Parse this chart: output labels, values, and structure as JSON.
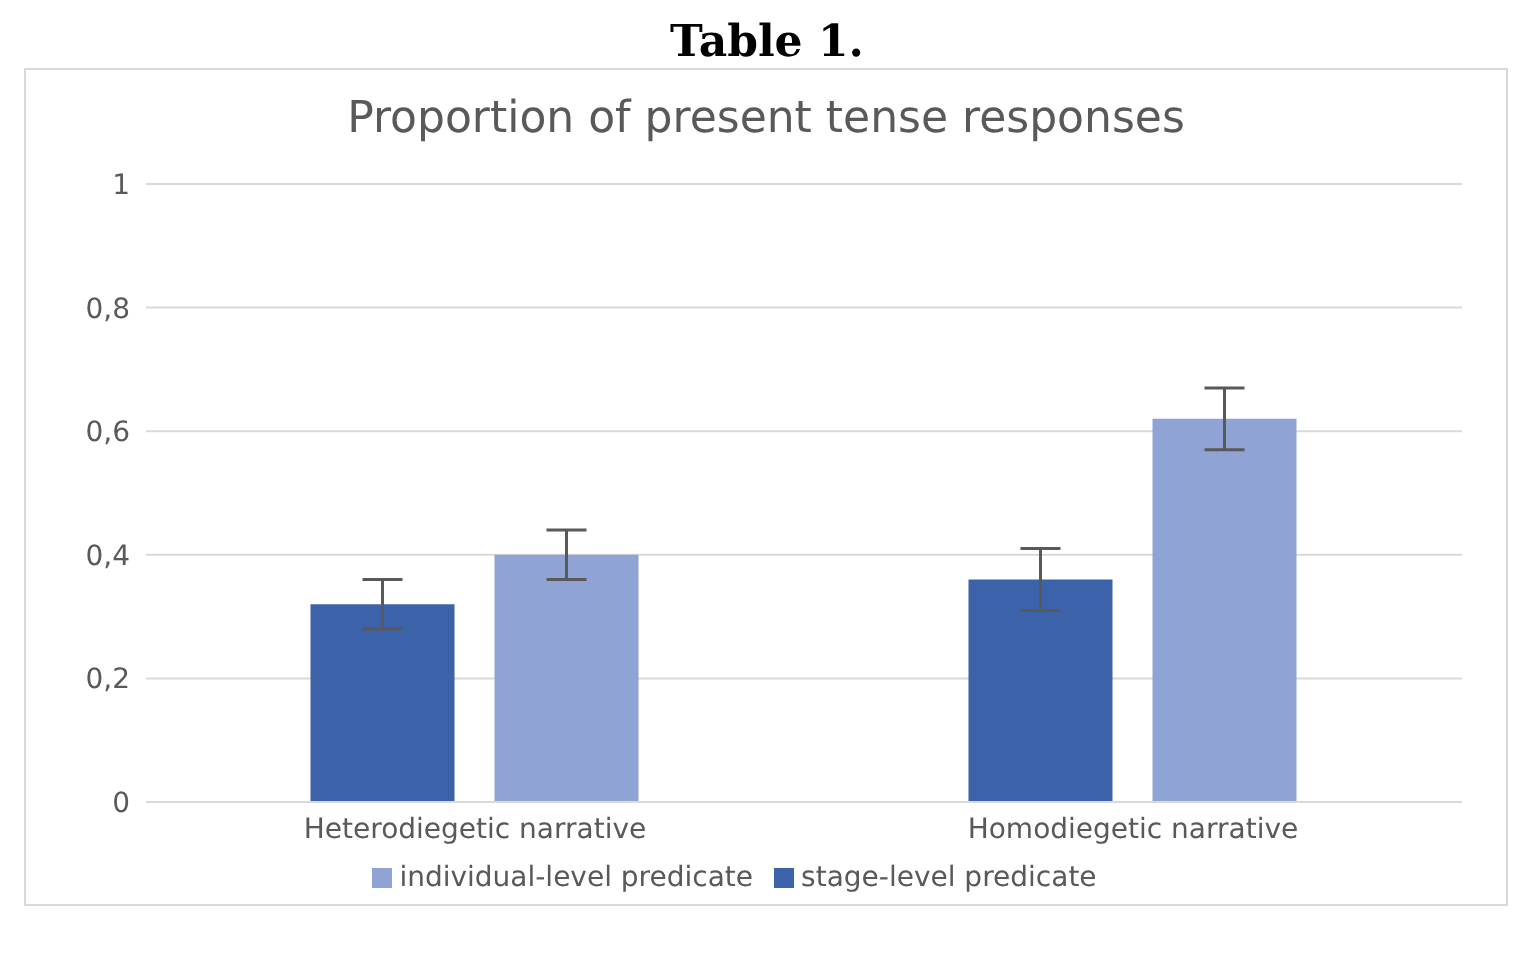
{
  "chart_data": {
    "type": "bar",
    "title": "Table 1.",
    "subtitle": "Proportion of present tense responses",
    "categories": [
      "Heterodiegetic narrative",
      "Homodiegetic narrative"
    ],
    "series": [
      {
        "name": "stage-level predicate",
        "color": "#3c62aa",
        "values": [
          0.32,
          0.36
        ],
        "errors": [
          0.04,
          0.05
        ]
      },
      {
        "name": "individual-level predicate",
        "color": "#8fa3d4",
        "values": [
          0.4,
          0.62
        ],
        "errors": [
          0.04,
          0.05
        ]
      }
    ],
    "ylim": [
      0,
      1
    ],
    "yticks": [
      {
        "value": 0,
        "label": "0"
      },
      {
        "value": 0.2,
        "label": "0,2"
      },
      {
        "value": 0.4,
        "label": "0,4"
      },
      {
        "value": 0.6,
        "label": "0,6"
      },
      {
        "value": 0.8,
        "label": "0,8"
      },
      {
        "value": 1,
        "label": "1"
      }
    ],
    "grid": "y",
    "legend": "bottom"
  }
}
